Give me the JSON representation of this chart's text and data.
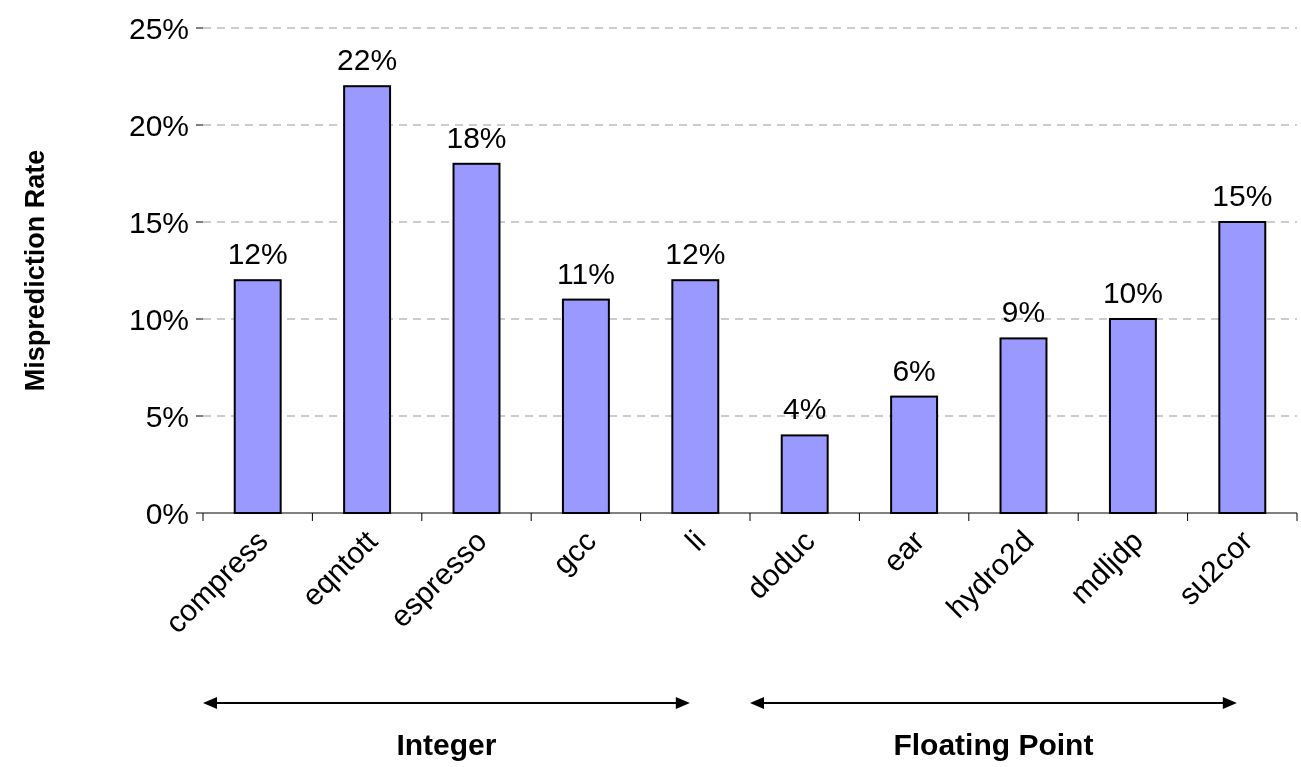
{
  "chart_data": {
    "type": "bar",
    "ylabel": "Misprediction Rate",
    "categories": [
      "compress",
      "eqntott",
      "espresso",
      "gcc",
      "li",
      "doduc",
      "ear",
      "hydro2d",
      "mdljdp",
      "su2cor"
    ],
    "values": [
      12,
      22,
      18,
      11,
      12,
      4,
      6,
      9,
      10,
      15
    ],
    "color": "#9999ff",
    "ylim": [
      0,
      25
    ],
    "yticks": [
      {
        "value": 0,
        "label": "0%"
      },
      {
        "value": 5,
        "label": "5%"
      },
      {
        "value": 10,
        "label": "10%"
      },
      {
        "value": 15,
        "label": "15%"
      },
      {
        "value": 20,
        "label": "20%"
      },
      {
        "value": 25,
        "label": "25%"
      }
    ],
    "value_labels": [
      "12%",
      "22%",
      "18%",
      "11%",
      "12%",
      "4%",
      "6%",
      "9%",
      "10%",
      "15%"
    ],
    "grid": "y",
    "annotations": [
      "Integer",
      "Floating Point"
    ]
  }
}
